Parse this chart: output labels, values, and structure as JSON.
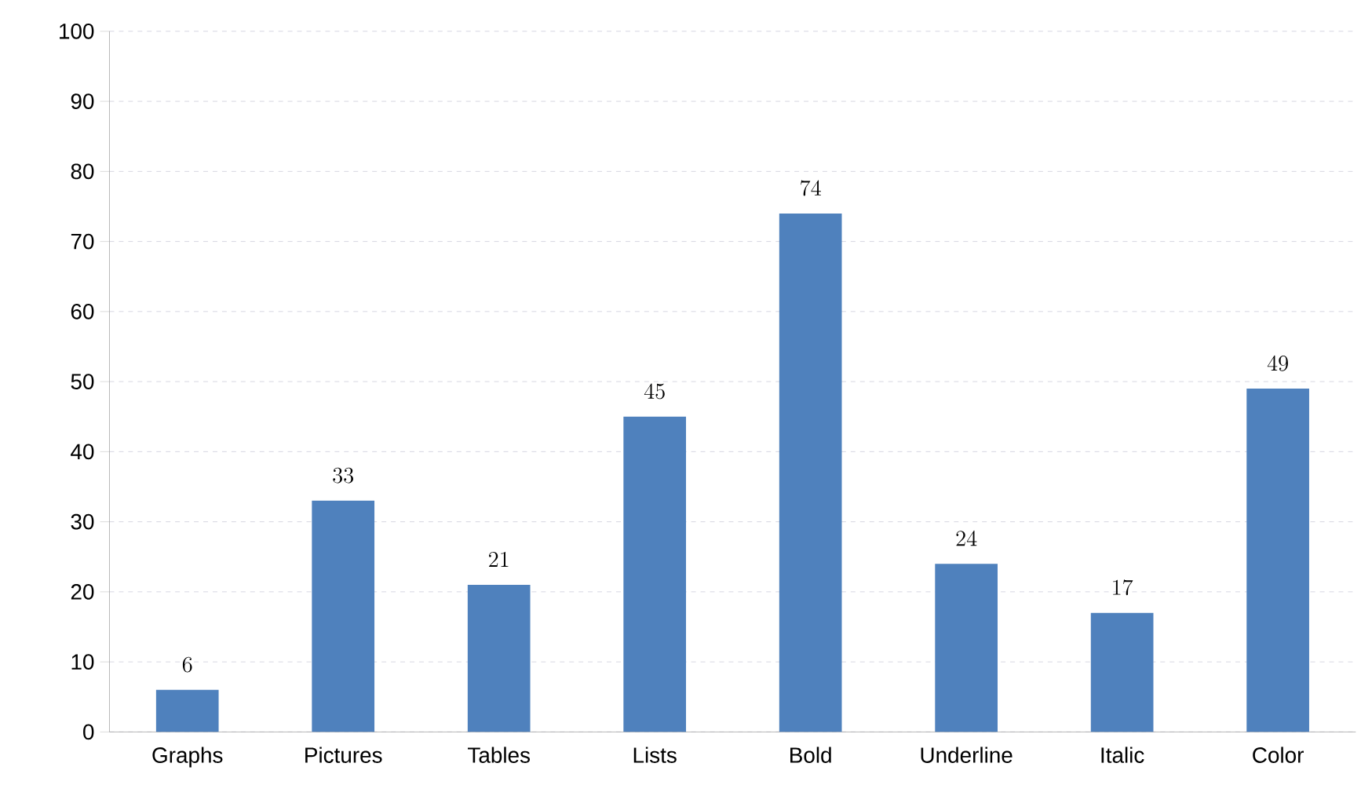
{
  "chart_data": {
    "type": "bar",
    "categories": [
      "Graphs",
      "Pictures",
      "Tables",
      "Lists",
      "Bold",
      "Underline",
      "Italic",
      "Color"
    ],
    "values": [
      6,
      33,
      21,
      45,
      74,
      24,
      17,
      49
    ],
    "color": "#4f81bd",
    "ylim": [
      0,
      100
    ],
    "yticks": [
      0,
      10,
      20,
      30,
      40,
      50,
      60,
      70,
      80,
      90,
      100
    ],
    "grid": "y",
    "data_labels": true
  }
}
